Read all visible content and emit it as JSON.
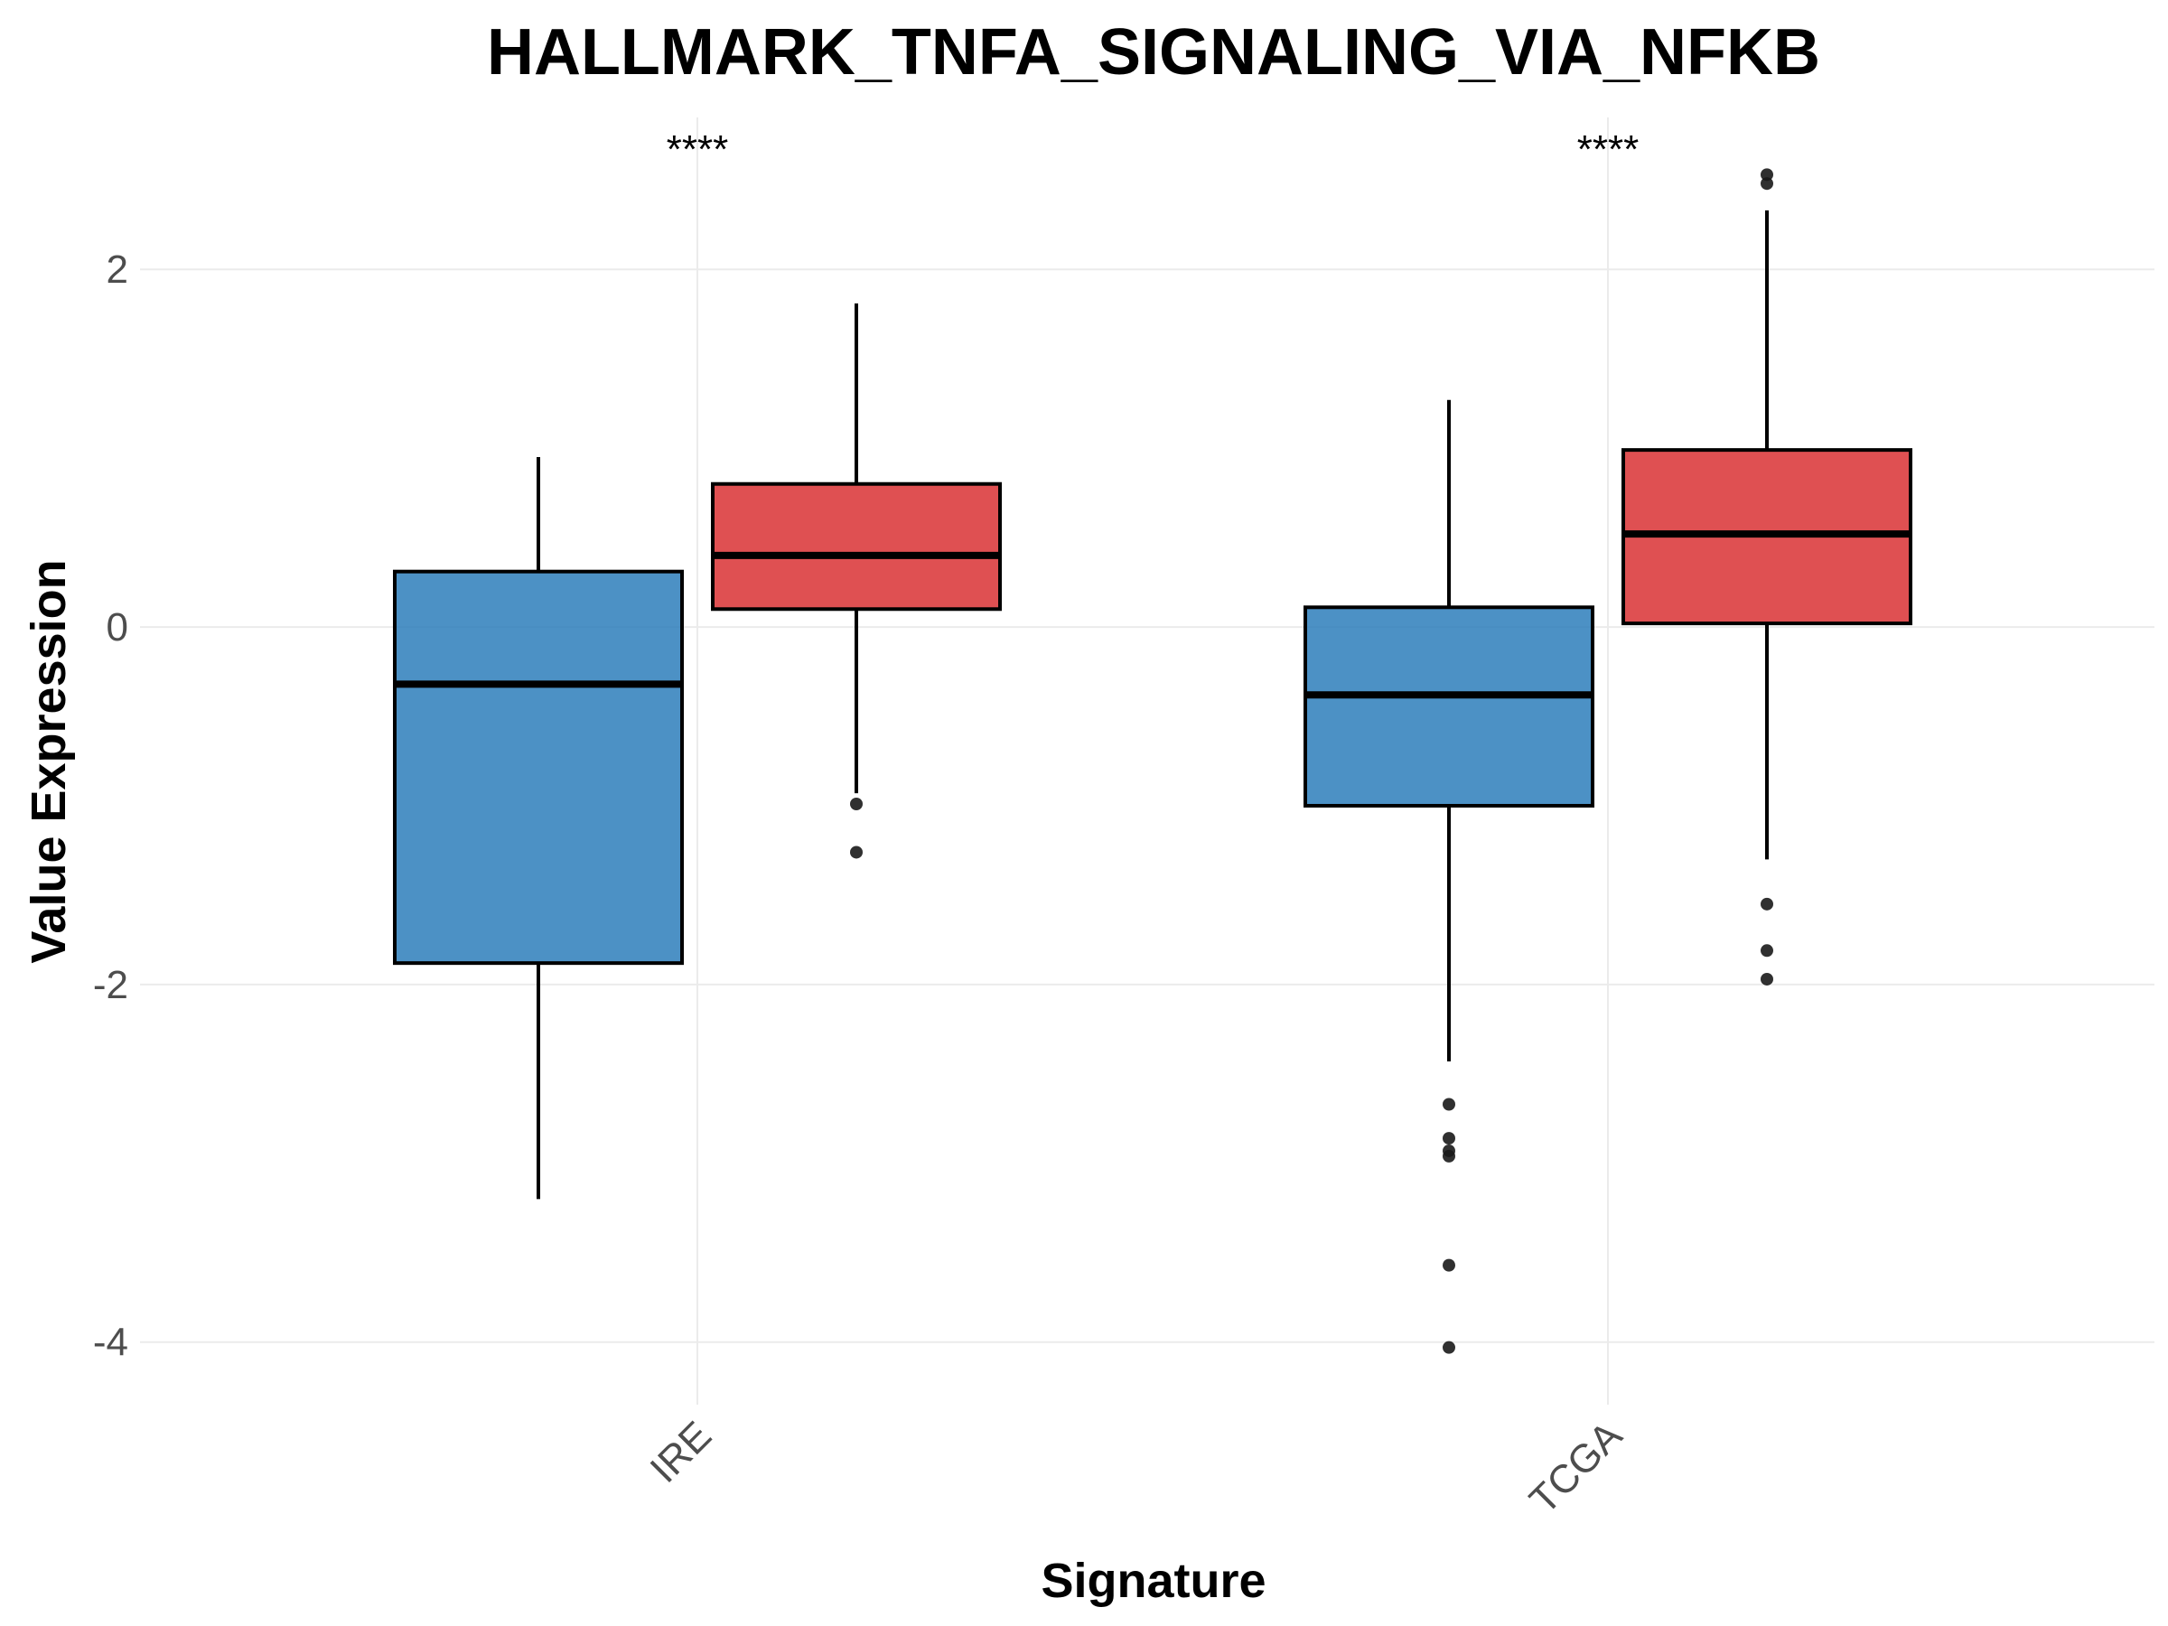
{
  "chart_data": {
    "type": "boxplot",
    "title": "HALLMARK_TNFA_SIGNALING_VIA_NFKB",
    "xlabel": "Signature",
    "ylabel": "Value Expression",
    "ylim": [
      -4.35,
      2.85
    ],
    "yticks": [
      2,
      0,
      -2,
      -4
    ],
    "ytick_labels": [
      "2",
      "0",
      "-2",
      "-4"
    ],
    "categories": [
      "IRE",
      "TCGA"
    ],
    "x_tick_rotation": -45,
    "grid": true,
    "legend": "none",
    "colors": {
      "group_1": "#2f7fbc",
      "group_2": "#da3336",
      "outlier": "#1a1a1a",
      "grid": "#ebebeb"
    },
    "significance": [
      "****",
      "****"
    ],
    "boxes": [
      {
        "category": "IRE",
        "group": 1,
        "color": "#2f7fbc",
        "whisker_low": -3.2,
        "q1": -1.88,
        "median": -0.32,
        "q3": 0.31,
        "whisker_high": 0.95,
        "outliers": []
      },
      {
        "category": "IRE",
        "group": 2,
        "color": "#da3336",
        "whisker_low": -0.93,
        "q1": 0.1,
        "median": 0.4,
        "q3": 0.8,
        "whisker_high": 1.81,
        "outliers": [
          -0.99,
          -1.26
        ]
      },
      {
        "category": "TCGA",
        "group": 1,
        "color": "#2f7fbc",
        "whisker_low": -2.43,
        "q1": -1.0,
        "median": -0.38,
        "q3": 0.11,
        "whisker_high": 1.27,
        "outliers": [
          -2.67,
          -2.86,
          -2.93,
          -2.96,
          -3.57,
          -4.03
        ]
      },
      {
        "category": "TCGA",
        "group": 2,
        "color": "#da3336",
        "whisker_low": -1.3,
        "q1": 0.02,
        "median": 0.52,
        "q3": 0.99,
        "whisker_high": 2.33,
        "outliers": [
          2.53,
          2.48,
          -1.55,
          -1.81,
          -1.97
        ]
      }
    ]
  }
}
